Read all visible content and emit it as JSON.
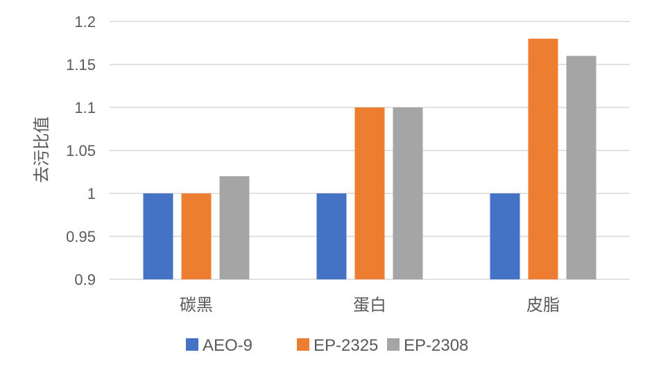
{
  "chart_data": {
    "type": "bar",
    "categories": [
      "碳黑",
      "蛋白",
      "皮脂"
    ],
    "series": [
      {
        "name": "AEO-9",
        "values": [
          1.0,
          1.0,
          1.0
        ],
        "color": "#4472C4"
      },
      {
        "name": "EP-2325",
        "values": [
          1.0,
          1.1,
          1.18
        ],
        "color": "#ED7D31"
      },
      {
        "name": "EP-2308",
        "values": [
          1.02,
          1.1,
          1.16
        ],
        "color": "#A5A5A5"
      }
    ],
    "ylabel": "去污比值",
    "ylim": [
      0.9,
      1.2
    ],
    "yticks": [
      0.9,
      0.95,
      1,
      1.05,
      1.1,
      1.15,
      1.2
    ],
    "ytick_labels": [
      "0.9",
      "0.95",
      "1",
      "1.05",
      "1.1",
      "1.15",
      "1.2"
    ],
    "grid": true,
    "grid_color": "#D9D9D9",
    "legend_position": "bottom"
  }
}
